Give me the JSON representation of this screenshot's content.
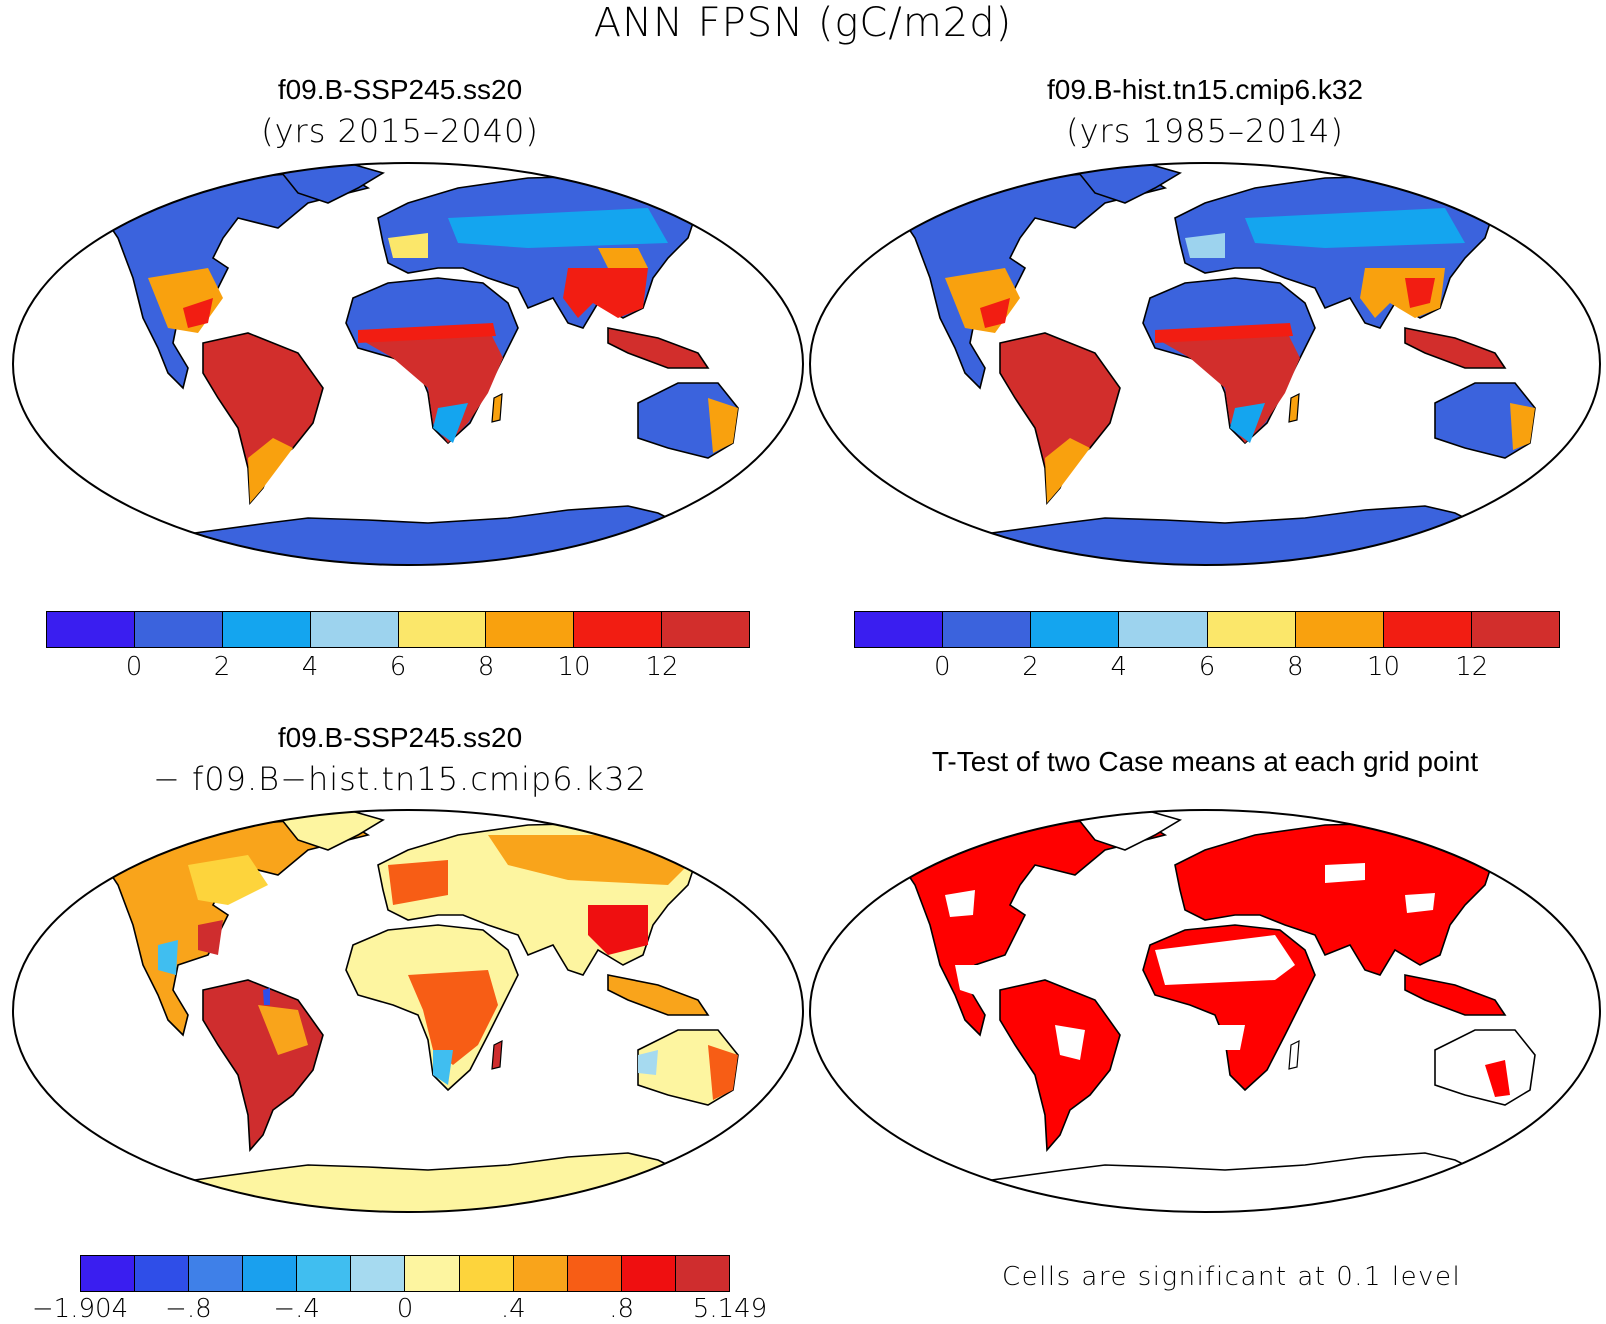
{
  "figure": {
    "title": "ANN FPSN (gC/m2d)"
  },
  "panels": {
    "case1": {
      "title": "f09.B-SSP245.ss20",
      "subtitle": "(yrs 2015–2040)"
    },
    "case2": {
      "title": "f09.B-hist.tn15.cmip6.k32",
      "subtitle": "(yrs 1985–2014)"
    },
    "diff": {
      "title": "f09.B-SSP245.ss20",
      "subtitle": "− f09.B−hist.tn15.cmip6.k32"
    },
    "ttest": {
      "title": "T-Test of two Case means at each grid point",
      "note": "Cells are significant at 0.1 level"
    }
  },
  "colorbars": {
    "absolute": {
      "colors": [
        "#3a1ef0",
        "#3b63dd",
        "#14a5ef",
        "#9dd3ee",
        "#fbe76a",
        "#f9a10e",
        "#f21d12",
        "#d22e2c"
      ],
      "labels": [
        "0",
        "2",
        "4",
        "6",
        "8",
        "10",
        "12"
      ]
    },
    "difference": {
      "colors": [
        "#3a1ef0",
        "#2f4ee8",
        "#3f80e8",
        "#1aa0ee",
        "#40bef0",
        "#a6daf0",
        "#fdf5a0",
        "#fdd43c",
        "#f9a41b",
        "#f75d15",
        "#ef0f10",
        "#cf2d2e"
      ],
      "labels": [
        "−1.904",
        "−.8",
        "−.4",
        "0",
        ".4",
        ".8",
        "5.149"
      ]
    }
  },
  "map_colors": {
    "ocean": "#ffffff",
    "antarctica_abs": "#3b63dd",
    "antarctica_diff": "#fdf5a0",
    "significant": "#ff0000"
  }
}
